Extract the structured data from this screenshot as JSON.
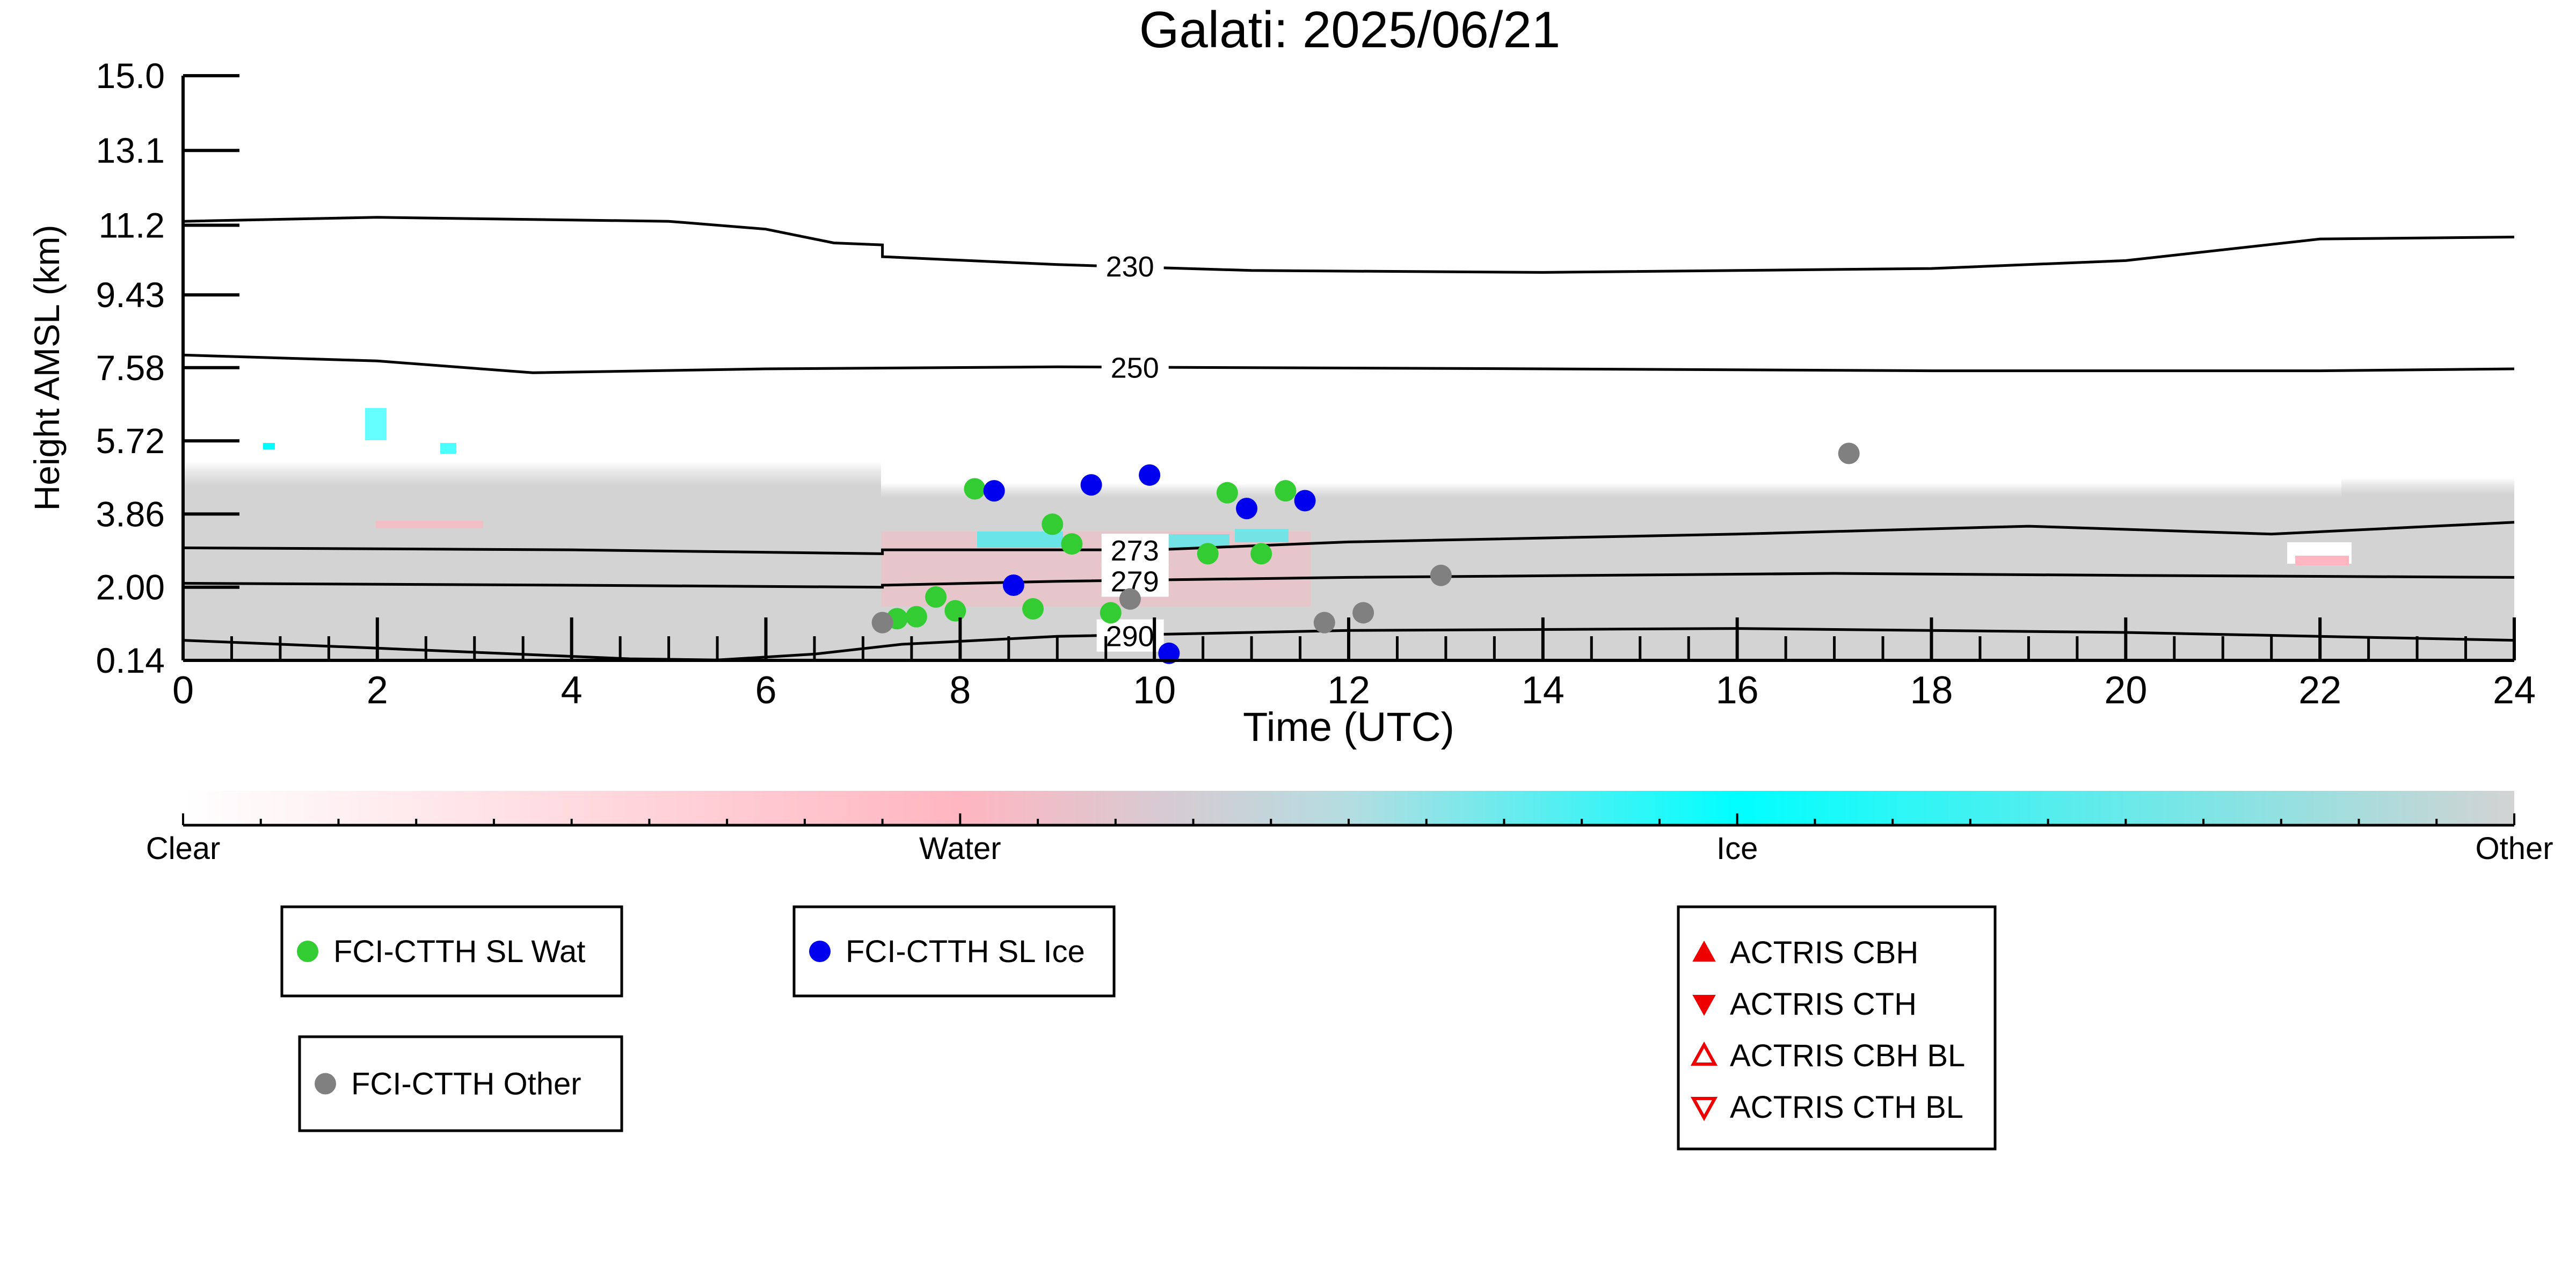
{
  "chart_data": {
    "type": "scatter",
    "title": "Galati: 2025/06/21",
    "xlabel": "Time (UTC)",
    "ylabel": "Height AMSL (km)",
    "xlim": [
      0,
      24
    ],
    "ylim": [
      0.14,
      15.0
    ],
    "x_ticks": [
      "0",
      "2",
      "4",
      "6",
      "8",
      "10",
      "12",
      "14",
      "16",
      "18",
      "20",
      "22",
      "24"
    ],
    "y_ticks": [
      "0.14",
      "2.00",
      "3.86",
      "5.72",
      "7.58",
      "9.43",
      "11.2",
      "13.1",
      "15.0"
    ],
    "y_tick_values": [
      0.14,
      2.0,
      3.86,
      5.72,
      7.58,
      9.43,
      11.2,
      13.1,
      15.0
    ],
    "grid": false,
    "contours": [
      {
        "label": "230",
        "label_x": 9.45,
        "points": [
          [
            0,
            11.3
          ],
          [
            2,
            11.4
          ],
          [
            5,
            11.3
          ],
          [
            6,
            11.1
          ],
          [
            6.7,
            10.75
          ],
          [
            7.2,
            10.7
          ],
          [
            7.2,
            10.4
          ],
          [
            9,
            10.2
          ],
          [
            11,
            10.05
          ],
          [
            14,
            10.0
          ],
          [
            18,
            10.1
          ],
          [
            20,
            10.3
          ],
          [
            22,
            10.85
          ],
          [
            24,
            10.9
          ]
        ]
      },
      {
        "label": "250",
        "label_x": 9.5,
        "points": [
          [
            0,
            7.9
          ],
          [
            2,
            7.75
          ],
          [
            3.6,
            7.45
          ],
          [
            6,
            7.55
          ],
          [
            9,
            7.6
          ],
          [
            14,
            7.55
          ],
          [
            18,
            7.5
          ],
          [
            22,
            7.5
          ],
          [
            24,
            7.55
          ]
        ]
      },
      {
        "label": "273",
        "label_x": 9.5,
        "points": [
          [
            0,
            3.0
          ],
          [
            4,
            2.95
          ],
          [
            7.2,
            2.85
          ],
          [
            7.2,
            2.95
          ],
          [
            10,
            2.95
          ],
          [
            12,
            3.15
          ],
          [
            16,
            3.35
          ],
          [
            19,
            3.55
          ],
          [
            21.5,
            3.35
          ],
          [
            24,
            3.65
          ]
        ]
      },
      {
        "label": "279",
        "label_x": 9.5,
        "points": [
          [
            0,
            2.1
          ],
          [
            4,
            2.05
          ],
          [
            7.2,
            2.0
          ],
          [
            7.2,
            2.05
          ],
          [
            9,
            2.15
          ],
          [
            12,
            2.25
          ],
          [
            17,
            2.35
          ],
          [
            20,
            2.3
          ],
          [
            24,
            2.25
          ]
        ]
      },
      {
        "label": "290",
        "label_x": 9.45,
        "points": [
          [
            0,
            0.65
          ],
          [
            2,
            0.45
          ],
          [
            4.6,
            0.18
          ],
          [
            5.5,
            0.15
          ],
          [
            6.5,
            0.3
          ],
          [
            7.4,
            0.55
          ],
          [
            9,
            0.75
          ],
          [
            12,
            0.9
          ],
          [
            16,
            0.95
          ],
          [
            20,
            0.85
          ],
          [
            24,
            0.65
          ]
        ]
      }
    ],
    "series": [
      {
        "name": "FCI-CTTH SL Wat",
        "color": "#33cc33",
        "points": [
          [
            7.35,
            1.2
          ],
          [
            7.55,
            1.25
          ],
          [
            7.75,
            1.75
          ],
          [
            7.95,
            1.4
          ],
          [
            8.15,
            4.5
          ],
          [
            8.75,
            1.45
          ],
          [
            8.95,
            3.6
          ],
          [
            9.15,
            3.1
          ],
          [
            9.55,
            1.35
          ],
          [
            10.55,
            2.85
          ],
          [
            10.75,
            4.4
          ],
          [
            11.1,
            2.85
          ],
          [
            11.35,
            4.45
          ]
        ]
      },
      {
        "name": "FCI-CTTH SL Ice",
        "color": "#0000ee",
        "points": [
          [
            8.35,
            4.45
          ],
          [
            8.55,
            2.05
          ],
          [
            9.35,
            4.6
          ],
          [
            9.95,
            4.85
          ],
          [
            10.15,
            0.32
          ],
          [
            10.95,
            4.0
          ],
          [
            11.55,
            4.2
          ]
        ]
      },
      {
        "name": "FCI-CTTH Other",
        "color": "#808080",
        "points": [
          [
            7.2,
            1.1
          ],
          [
            9.75,
            1.7
          ],
          [
            11.75,
            1.1
          ],
          [
            12.15,
            1.35
          ],
          [
            12.95,
            2.3
          ],
          [
            17.15,
            5.4
          ]
        ]
      }
    ],
    "colorbar": {
      "labels": [
        "Clear",
        "Water",
        "Ice",
        "Other"
      ],
      "colors": [
        "#ffffff",
        "#ffb6c1",
        "#00ffff",
        "#d3d3d3"
      ]
    },
    "legends": [
      {
        "entries": [
          {
            "label": "FCI-CTTH SL Wat",
            "marker": "circle",
            "color": "#33cc33"
          }
        ]
      },
      {
        "entries": [
          {
            "label": "FCI-CTTH SL Ice",
            "marker": "circle",
            "color": "#0000ee"
          }
        ]
      },
      {
        "entries": [
          {
            "label": "FCI-CTTH Other",
            "marker": "circle",
            "color": "#808080"
          }
        ]
      },
      {
        "entries": [
          {
            "label": "ACTRIS CBH",
            "marker": "triangle-up-filled",
            "color": "#ee0000"
          },
          {
            "label": "ACTRIS CTH",
            "marker": "triangle-down-filled",
            "color": "#ee0000"
          },
          {
            "label": "ACTRIS CBH BL",
            "marker": "triangle-up-open",
            "color": "#ee0000"
          },
          {
            "label": "ACTRIS CTH BL",
            "marker": "triangle-down-open",
            "color": "#ee0000"
          }
        ]
      }
    ]
  }
}
